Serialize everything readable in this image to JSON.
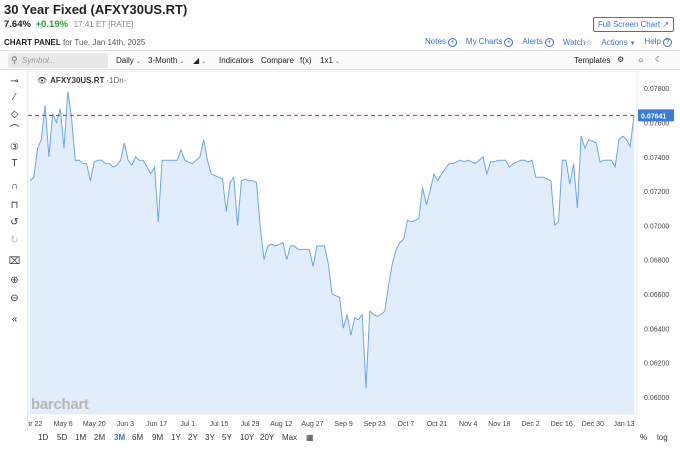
{
  "header": {
    "title": "30 Year Fixed (AFXY30US.RT)",
    "last": "7.64%",
    "change": "+0.19%",
    "time": "17:41 ET [RATE]",
    "fullscreen_label": "Full Screen Chart ↗",
    "panel_label": "CHART PANEL",
    "panel_date": "for Tue, Jan 14th, 2025"
  },
  "links": {
    "notes": "Notes",
    "my_charts": "My Charts",
    "alerts": "Alerts",
    "watch": "Watch",
    "actions": "Actions",
    "help": "Help"
  },
  "toolbar": {
    "search_placeholder": "Symbol...",
    "interval": "Daily",
    "period": "3-Month",
    "indicators": "Indicators",
    "compare": "Compare",
    "fx": "f(x)",
    "layout": "1x1",
    "templates": "Templates"
  },
  "legend": {
    "symbol": "AFXY30US.RT",
    "interval": "·1Dn·"
  },
  "watermark": "barchart",
  "ranges": [
    "1D",
    "5D",
    "1M",
    "2M",
    "3M",
    "6M",
    "9M",
    "1Y",
    "2Y",
    "3Y",
    "5Y",
    "10Y",
    "20Y",
    "Max"
  ],
  "active_range": "3M",
  "bottom_right": {
    "pct": "%",
    "log": "log"
  },
  "colors": {
    "accent": "#3a6fd8",
    "up": "#2a9d3a",
    "line": "#6aa6e8",
    "fill": "#dbe9fa",
    "last_price": "#d62828"
  },
  "chart_data": {
    "type": "area",
    "x_ticks": [
      "8",
      "Apr 22",
      "May 6",
      "May 20",
      "Jun 3",
      "Jun 17",
      "Jul 1",
      "Jul 15",
      "Jul 29",
      "Aug 12",
      "Aug 27",
      "Sep 9",
      "Sep 23",
      "Oct 7",
      "Oct 21",
      "Nov 4",
      "Nov 18",
      "Dec 2",
      "Dec 16",
      "Dec 30",
      "Jan 13"
    ],
    "y_ticks": [
      "0.07800",
      "0.07600",
      "0.07400",
      "0.07200",
      "0.07000",
      "0.06800",
      "0.06600",
      "0.06400",
      "0.06200",
      "0.06000"
    ],
    "ylim": [
      0.059,
      0.079
    ],
    "last_value": "0.07641",
    "last_value_num": 0.07641,
    "values": [
      0.0726,
      0.0728,
      0.0745,
      0.075,
      0.077,
      0.074,
      0.0765,
      0.076,
      0.0768,
      0.0745,
      0.0778,
      0.0763,
      0.0738,
      0.0738,
      0.0736,
      0.0736,
      0.0726,
      0.0737,
      0.0738,
      0.0738,
      0.0736,
      0.0736,
      0.0734,
      0.0735,
      0.0738,
      0.0748,
      0.0738,
      0.0735,
      0.074,
      0.0738,
      0.0738,
      0.0734,
      0.073,
      0.0734,
      0.0702,
      0.0738,
      0.0738,
      0.0738,
      0.0738,
      0.0738,
      0.0744,
      0.0738,
      0.0737,
      0.0736,
      0.0738,
      0.074,
      0.075,
      0.0738,
      0.073,
      0.0729,
      0.0728,
      0.0727,
      0.0708,
      0.0725,
      0.0728,
      0.07,
      0.0726,
      0.0727,
      0.0726,
      0.0726,
      0.0725,
      0.0699,
      0.068,
      0.0688,
      0.0689,
      0.0688,
      0.0689,
      0.069,
      0.068,
      0.0688,
      0.0688,
      0.0686,
      0.0686,
      0.0686,
      0.0686,
      0.0676,
      0.0688,
      0.0688,
      0.0688,
      0.0678,
      0.066,
      0.0659,
      0.0658,
      0.064,
      0.0648,
      0.0636,
      0.0646,
      0.0645,
      0.0648,
      0.0605,
      0.065,
      0.0648,
      0.0647,
      0.0648,
      0.065,
      0.0665,
      0.0678,
      0.0686,
      0.069,
      0.0692,
      0.0703,
      0.0702,
      0.0703,
      0.0704,
      0.0722,
      0.0712,
      0.072,
      0.073,
      0.0726,
      0.073,
      0.0733,
      0.0736,
      0.0736,
      0.0737,
      0.0738,
      0.0737,
      0.0738,
      0.0737,
      0.0736,
      0.0738,
      0.074,
      0.073,
      0.0737,
      0.0737,
      0.0738,
      0.0738,
      0.0738,
      0.0734,
      0.0736,
      0.0737,
      0.0738,
      0.0738,
      0.0737,
      0.0738,
      0.0728,
      0.0728,
      0.0728,
      0.0727,
      0.0726,
      0.07,
      0.0702,
      0.0738,
      0.0738,
      0.0724,
      0.0736,
      0.071,
      0.0752,
      0.0745,
      0.075,
      0.0749,
      0.0748,
      0.0737,
      0.0738,
      0.0738,
      0.0738,
      0.0734,
      0.075,
      0.0752,
      0.075,
      0.0746,
      0.0764
    ]
  }
}
